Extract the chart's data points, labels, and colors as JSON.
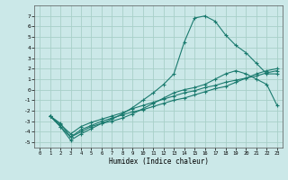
{
  "xlabel": "Humidex (Indice chaleur)",
  "background_color": "#cbe8e8",
  "grid_color": "#a8d0c8",
  "line_color": "#1a7a6e",
  "xlim": [
    -0.5,
    23.5
  ],
  "ylim": [
    -5.5,
    8.0
  ],
  "xticks": [
    0,
    1,
    2,
    3,
    4,
    5,
    6,
    7,
    8,
    9,
    10,
    11,
    12,
    13,
    14,
    15,
    16,
    17,
    18,
    19,
    20,
    21,
    22,
    23
  ],
  "yticks": [
    -5,
    -4,
    -3,
    -2,
    -1,
    0,
    1,
    2,
    3,
    4,
    5,
    6,
    7
  ],
  "line1_x": [
    1,
    2,
    3,
    4,
    5,
    6,
    7,
    8,
    9,
    10,
    11,
    12,
    13,
    14,
    15,
    16,
    17,
    18,
    19,
    20,
    21,
    22,
    23
  ],
  "line1_y": [
    -2.5,
    -3.5,
    -4.8,
    -4.2,
    -3.7,
    -3.2,
    -2.8,
    -2.3,
    -1.7,
    -1.0,
    -0.3,
    0.5,
    1.5,
    4.5,
    6.8,
    7.0,
    6.5,
    5.2,
    4.2,
    3.5,
    2.5,
    1.5,
    1.5
  ],
  "line2_x": [
    1,
    2,
    3,
    4,
    5,
    6,
    7,
    8,
    9,
    10,
    11,
    12,
    13,
    14,
    15,
    16,
    17,
    18,
    19,
    20,
    21,
    22,
    23
  ],
  "line2_y": [
    -2.5,
    -3.5,
    -4.5,
    -4.0,
    -3.5,
    -3.2,
    -3.0,
    -2.7,
    -2.3,
    -1.8,
    -1.3,
    -0.8,
    -0.3,
    0.0,
    0.2,
    0.5,
    1.0,
    1.5,
    1.8,
    1.5,
    1.0,
    0.5,
    -1.5
  ],
  "line3_x": [
    1,
    2,
    3,
    4,
    5,
    6,
    7,
    8,
    9,
    10,
    11,
    12,
    13,
    14,
    15,
    16,
    17,
    18,
    19,
    20,
    21,
    22,
    23
  ],
  "line3_y": [
    -2.5,
    -3.2,
    -4.5,
    -3.8,
    -3.4,
    -3.0,
    -2.7,
    -2.4,
    -2.1,
    -1.9,
    -1.6,
    -1.3,
    -1.0,
    -0.8,
    -0.5,
    -0.2,
    0.1,
    0.3,
    0.7,
    1.1,
    1.5,
    1.8,
    2.0
  ],
  "line4_x": [
    1,
    2,
    3,
    4,
    5,
    6,
    7,
    8,
    9,
    10,
    11,
    12,
    13,
    14,
    15,
    16,
    17,
    18,
    19,
    20,
    21,
    22,
    23
  ],
  "line4_y": [
    -2.5,
    -3.3,
    -4.2,
    -3.5,
    -3.1,
    -2.8,
    -2.5,
    -2.2,
    -1.8,
    -1.5,
    -1.2,
    -0.9,
    -0.6,
    -0.3,
    -0.1,
    0.2,
    0.4,
    0.7,
    0.9,
    1.1,
    1.3,
    1.6,
    1.8
  ]
}
